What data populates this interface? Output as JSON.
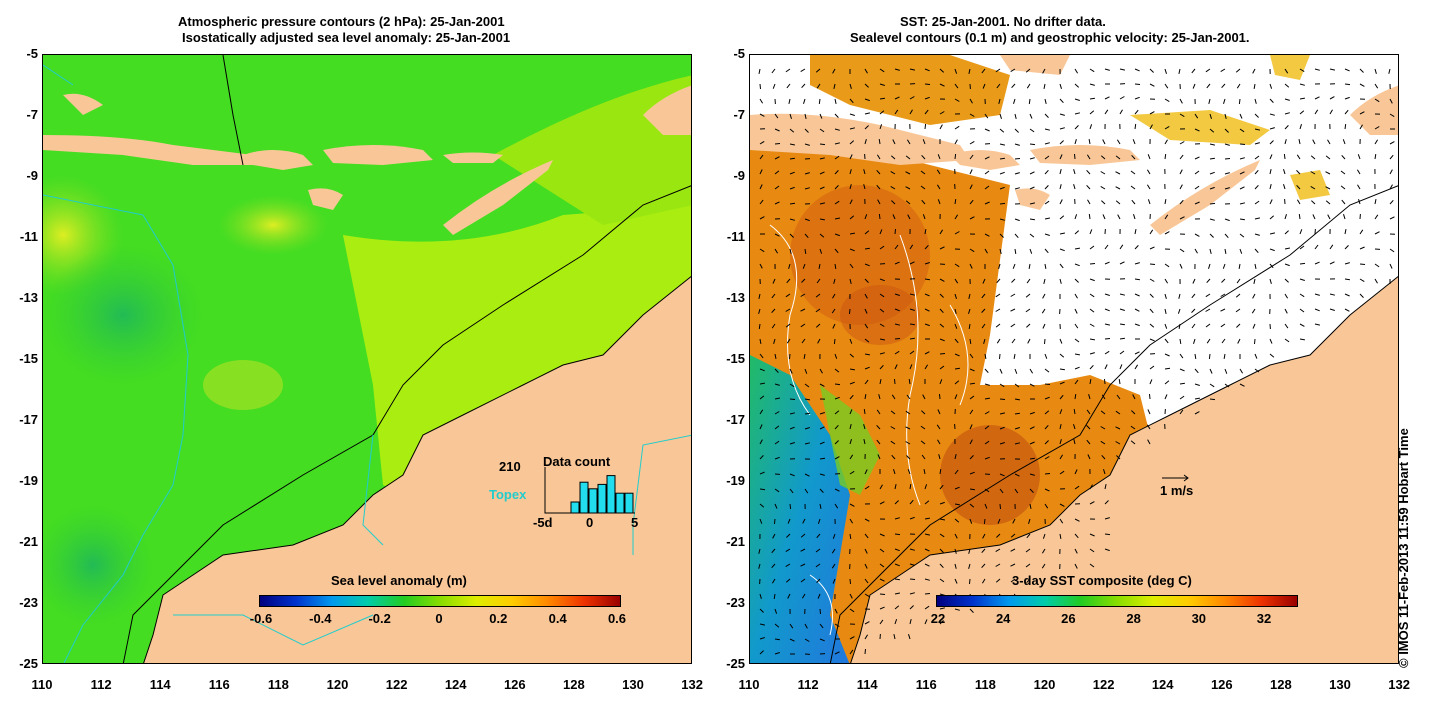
{
  "left_panel": {
    "title_line1": "Atmospheric pressure contours (2 hPa): 25-Jan-2001",
    "title_line2": "Isostatically adjusted sea level anomaly: 25-Jan-2001",
    "legend": {
      "count_value": "210",
      "count_title": "Data count",
      "satellite_label": "Topex",
      "hist_axis_left": "-5d",
      "hist_axis_mid": "0",
      "hist_axis_right": "5",
      "hist_bars": [
        0.25,
        0.7,
        0.55,
        0.65,
        0.85,
        0.45,
        0.45
      ]
    },
    "colorbar": {
      "title": "Sea level anomaly (m)",
      "ticks": [
        "-0.6",
        "-0.4",
        "-0.2",
        "0",
        "0.2",
        "0.4",
        "0.6"
      ],
      "colors": [
        "#00007f",
        "#0033cc",
        "#0099ee",
        "#00ccaa",
        "#22cc22",
        "#88dd00",
        "#ddee00",
        "#ffcc00",
        "#ff8800",
        "#ee3300",
        "#990000"
      ]
    }
  },
  "right_panel": {
    "title_line1": "SST: 25-Jan-2001. No drifter data.",
    "title_line2": "Sealevel contours (0.1 m) and geostrophic velocity: 25-Jan-2001.",
    "scale_label": "1 m/s",
    "colorbar": {
      "title": "3-day SST composite (deg C)",
      "ticks": [
        "22",
        "24",
        "26",
        "28",
        "30",
        "32"
      ],
      "colors": [
        "#00007f",
        "#0033cc",
        "#0099ee",
        "#00ccaa",
        "#22cc22",
        "#88dd00",
        "#ddee00",
        "#ffcc00",
        "#ff8800",
        "#ee3300",
        "#990000"
      ]
    }
  },
  "axes": {
    "lat_ticks": [
      "-5",
      "-7",
      "-9",
      "-11",
      "-13",
      "-15",
      "-17",
      "-19",
      "-21",
      "-23",
      "-25"
    ],
    "lon_ticks": [
      "110",
      "112",
      "114",
      "116",
      "118",
      "120",
      "122",
      "124",
      "126",
      "128",
      "130",
      "132"
    ]
  },
  "credit": "© IMOS 11-Feb-2013 11:59 Hobart Time",
  "colors": {
    "land": "#f9c797",
    "ocean_green": "#33dd22",
    "sst_orange": "#e88a12",
    "white_cloud": "#ffffff"
  }
}
